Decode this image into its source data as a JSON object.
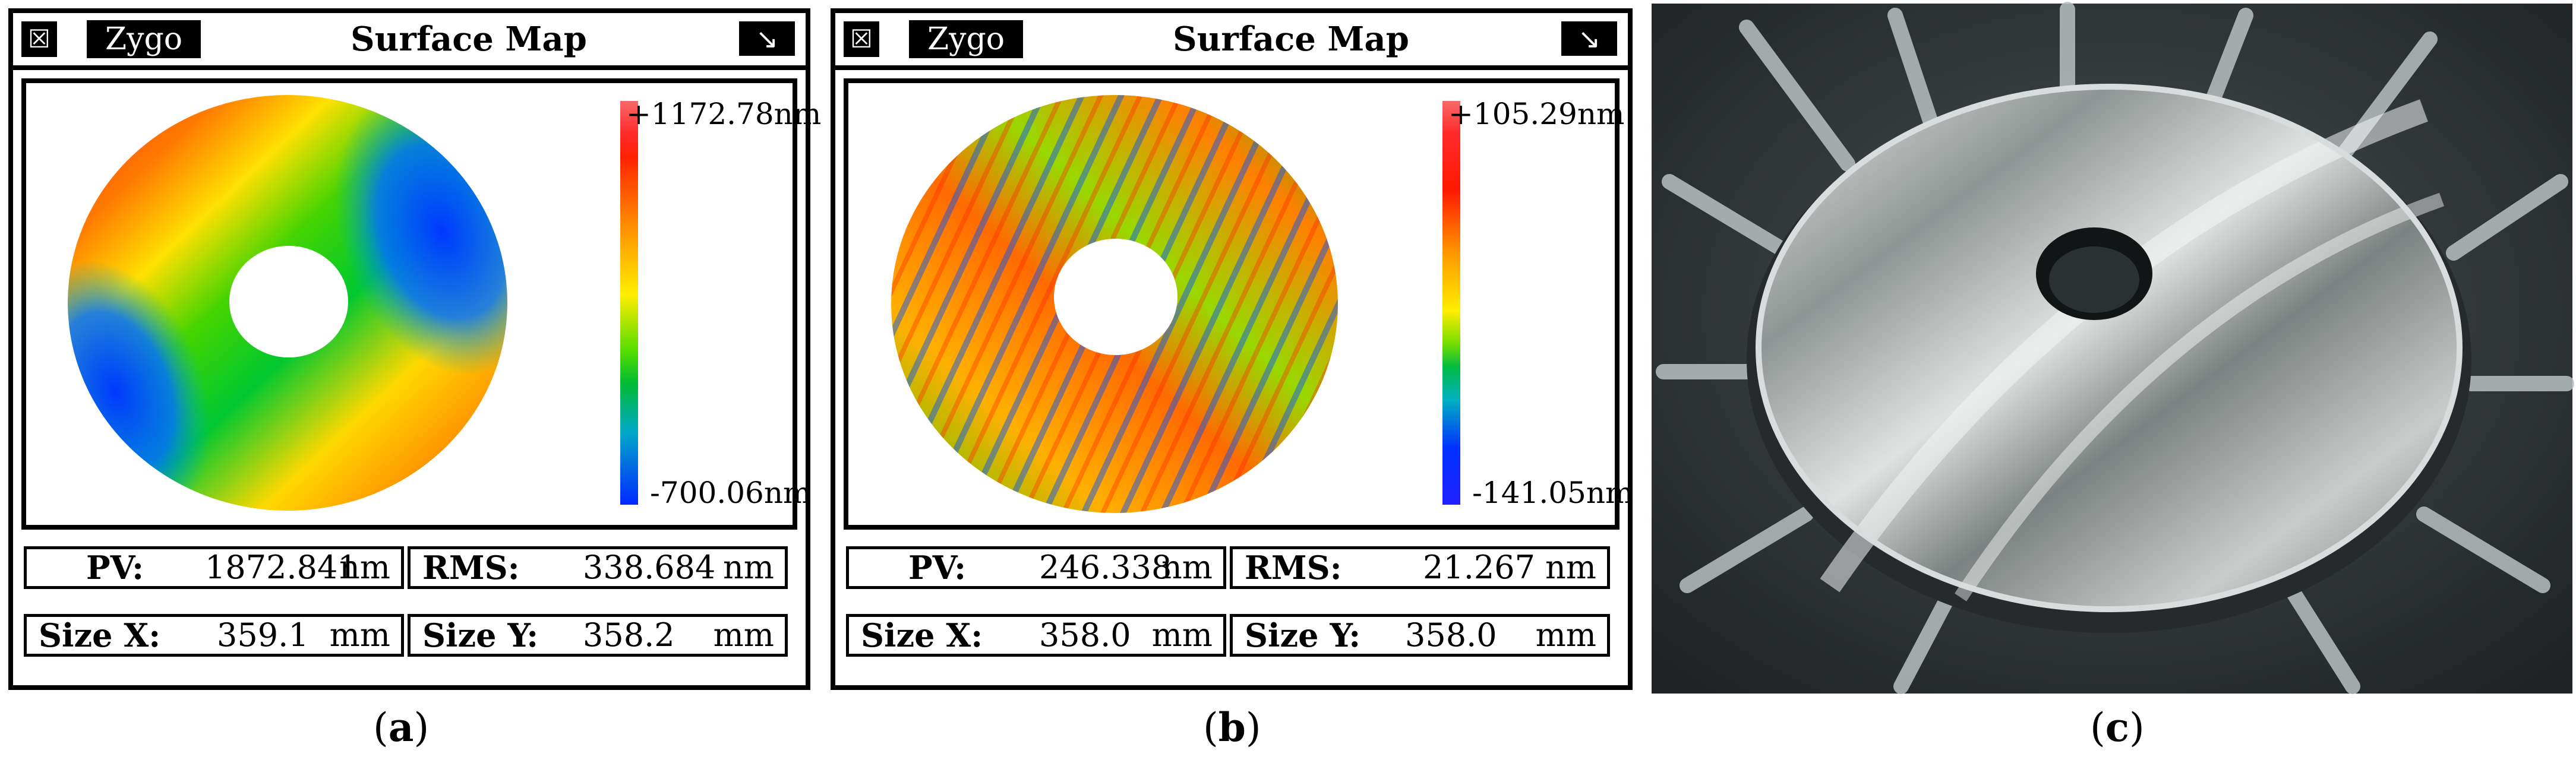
{
  "panels": [
    {
      "id": "a",
      "window": {
        "close_icon": "☒",
        "brand": "Zygo",
        "title": "Surface Map",
        "arrow_icon": "↘"
      },
      "colorbar": {
        "max": "+1172.78nm",
        "min": "-700.06nm"
      },
      "stats": {
        "pv": {
          "label": "PV:",
          "value": "1872.841",
          "unit": "nm"
        },
        "rms": {
          "label": "RMS:",
          "value": "338.684",
          "unit": "nm"
        },
        "size_x": {
          "label": "Size X:",
          "value": "359.1",
          "unit": "mm"
        },
        "size_y": {
          "label": "Size Y:",
          "value": "358.2",
          "unit": "mm"
        }
      },
      "caption": {
        "open": "(",
        "letter": "a",
        "close": ")"
      }
    },
    {
      "id": "b",
      "window": {
        "close_icon": "☒",
        "brand": "Zygo",
        "title": "Surface Map",
        "arrow_icon": "↘"
      },
      "colorbar": {
        "max": "+105.29nm",
        "min": "-141.05nm"
      },
      "stats": {
        "pv": {
          "label": "PV:",
          "value": "246.338",
          "unit": "nm"
        },
        "rms": {
          "label": "RMS:",
          "value": "21.267",
          "unit": "nm"
        },
        "size_x": {
          "label": "Size X:",
          "value": "358.0",
          "unit": "mm"
        },
        "size_y": {
          "label": "Size Y:",
          "value": "358.0",
          "unit": "mm"
        }
      },
      "caption": {
        "open": "(",
        "letter": "b",
        "close": ")"
      }
    }
  ],
  "photo": {
    "caption": {
      "open": "(",
      "letter": "c",
      "close": ")"
    }
  },
  "colors": {
    "frame": "#000000",
    "background": "#ffffff",
    "photo_base": "#303538"
  }
}
